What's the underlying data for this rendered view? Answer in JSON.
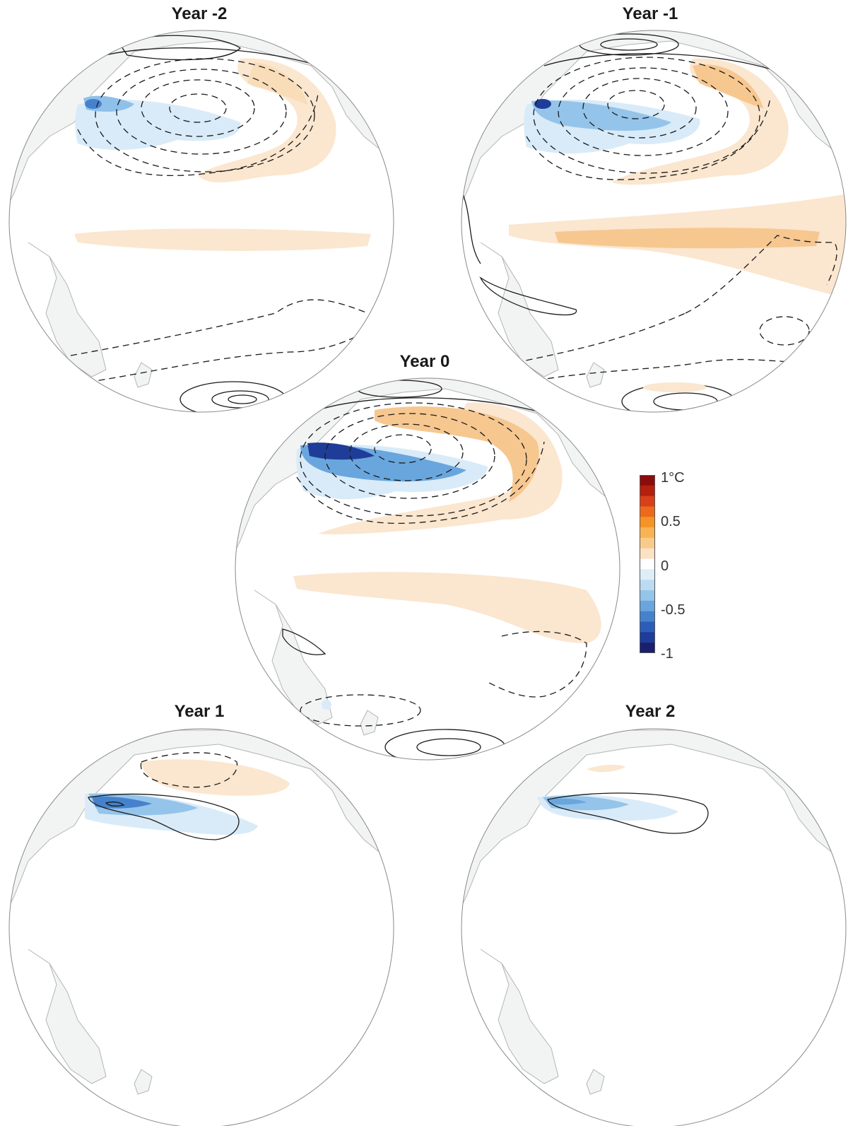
{
  "panels": [
    {
      "key": "ym2",
      "title": "Year -2"
    },
    {
      "key": "ym1",
      "title": "Year -1"
    },
    {
      "key": "y0",
      "title": "Year 0"
    },
    {
      "key": "y1",
      "title": "Year 1"
    },
    {
      "key": "y2",
      "title": "Year 2"
    }
  ],
  "colorbar": {
    "labels": [
      "1°C",
      "0.5",
      "0",
      "-0.5",
      "-1"
    ],
    "range": [
      -1,
      1
    ],
    "colors": [
      "#8b0c0c",
      "#b3200e",
      "#d8401a",
      "#ec6a1c",
      "#f59426",
      "#f8b454",
      "#f9cb8b",
      "#fbe2c4",
      "#ffffff",
      "#deedf8",
      "#bcdaf1",
      "#94c4ea",
      "#69a6dd",
      "#4682cc",
      "#2c5db8",
      "#1f3c99",
      "#1a1f6e"
    ]
  },
  "colors": {
    "land": "#f2f4f4",
    "coast": "#b4b4b4",
    "contour": "#1a1a1a",
    "warm_light": "#fbe6cf",
    "warm_mid": "#f7c790",
    "cool_light": "#d9ebf8",
    "cool_mid": "#8fc0ea",
    "cool_dark": "#1f3c99"
  }
}
